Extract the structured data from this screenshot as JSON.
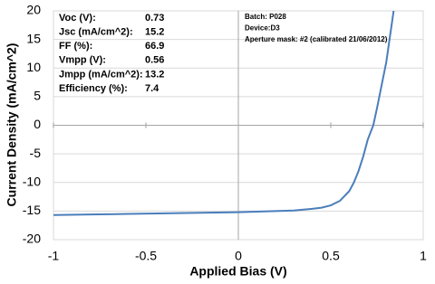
{
  "chart_data": {
    "type": "line",
    "x_label": "Applied Bias (V)",
    "y_label": "Current Density (mA/cm^2)",
    "x": [
      -1,
      -0.8,
      -0.6,
      -0.4,
      -0.2,
      0,
      0.1,
      0.2,
      0.3,
      0.4,
      0.45,
      0.5,
      0.55,
      0.6,
      0.625,
      0.65,
      0.675,
      0.7,
      0.73,
      0.75,
      0.775,
      0.8,
      0.82,
      0.84
    ],
    "series": [
      {
        "color": "#4a7ebb",
        "values": [
          -15.7,
          -15.6,
          -15.5,
          -15.4,
          -15.3,
          -15.2,
          -15.1,
          -15.0,
          -14.9,
          -14.6,
          -14.4,
          -14.0,
          -13.2,
          -11.5,
          -10.0,
          -8.0,
          -5.5,
          -2.5,
          0,
          3,
          7,
          11,
          15.5,
          20
        ]
      }
    ],
    "xlim": [
      -1,
      1
    ],
    "xticks": [
      -1,
      -0.5,
      0,
      0.5,
      1
    ],
    "ylim": [
      -20,
      20
    ],
    "yticks": [
      -20,
      -15,
      -10,
      -5,
      0,
      5,
      10,
      15,
      20
    ],
    "grid": true,
    "stats": [
      {
        "label": "Voc (V):",
        "value": 0.73
      },
      {
        "label": "Jsc (mA/cm^2):",
        "value": 15.2
      },
      {
        "label": "FF (%):",
        "value": 66.9
      },
      {
        "label": "Vmpp (V):",
        "value": 0.56
      },
      {
        "label": "Jmpp (mA/cm^2):",
        "value": 13.2
      },
      {
        "label": "Efficiency (%):",
        "value": 7.4
      }
    ],
    "info": [
      "Batch: P028",
      "Device:D3",
      "Aperture mask: #2 (calibrated 21/06/2012)"
    ]
  }
}
